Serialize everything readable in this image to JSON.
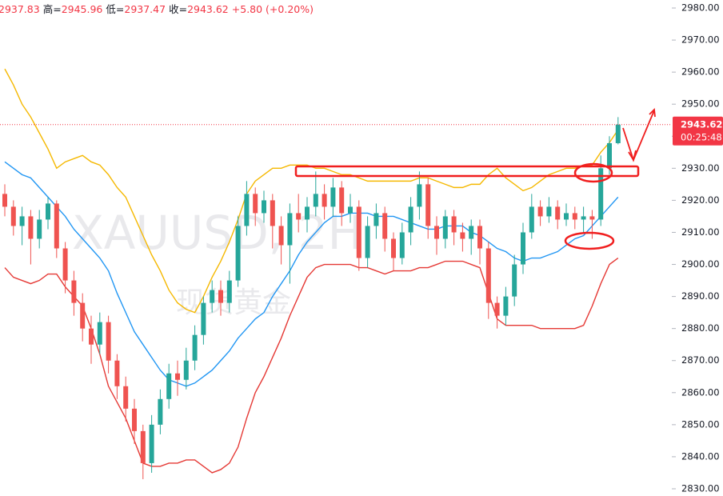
{
  "chart_data": {
    "type": "candlestick",
    "header": [
      "2937.83",
      "高=",
      "2945.96",
      "低=",
      "2937.47",
      "收=",
      "2943.62",
      "+5.80 (+0.20%)"
    ],
    "watermark": [
      "XAUUSD, 2H",
      "现货黄金"
    ],
    "price_label": "2943.62",
    "countdown": "00:25:48",
    "up_color": "#26a69a",
    "down_color": "#ef5350",
    "open": [
      2922,
      2918,
      2912,
      2915,
      2908,
      2914,
      2919,
      2905,
      2895,
      2888,
      2880,
      2875,
      2882,
      2870,
      2862,
      2855,
      2848,
      2838,
      2850,
      2858,
      2866,
      2864,
      2870,
      2878,
      2888,
      2892,
      2888,
      2895,
      2912,
      2922,
      2916,
      2920,
      2912,
      2906,
      2916,
      2914,
      2918,
      2922,
      2918,
      2924,
      2916,
      2918,
      2902,
      2912,
      2916,
      2908,
      2902,
      2910,
      2918,
      2925,
      2912,
      2908,
      2915,
      2910,
      2908,
      2912,
      2905,
      2888,
      2884,
      2890,
      2900,
      2910,
      2918,
      2915,
      2918,
      2914,
      2916,
      2914,
      2915,
      2914,
      2930,
      2937.83
    ],
    "high": [
      2925,
      2920,
      2918,
      2917,
      2917,
      2921,
      2920,
      2907,
      2898,
      2891,
      2884,
      2885,
      2884,
      2872,
      2865,
      2858,
      2850,
      2853,
      2861,
      2869,
      2870,
      2874,
      2881,
      2890,
      2895,
      2895,
      2898,
      2915,
      2926,
      2924,
      2923,
      2922,
      2915,
      2919,
      2922,
      2921,
      2929,
      2925,
      2927,
      2926,
      2922,
      2920,
      2915,
      2919,
      2918,
      2910,
      2913,
      2921,
      2929,
      2927,
      2915,
      2917,
      2917,
      2913,
      2914,
      2914,
      2907,
      2890,
      2893,
      2903,
      2913,
      2922,
      2920,
      2921,
      2920,
      2919,
      2918,
      2918,
      2917,
      2934,
      2940,
      2945.96
    ],
    "low": [
      2915,
      2909,
      2906,
      2900,
      2905,
      2911,
      2902,
      2891,
      2884,
      2876,
      2869,
      2872,
      2866,
      2858,
      2851,
      2844,
      2833,
      2835,
      2847,
      2855,
      2859,
      2861,
      2867,
      2875,
      2885,
      2884,
      2885,
      2893,
      2909,
      2912,
      2913,
      2905,
      2900,
      2894,
      2910,
      2910,
      2915,
      2914,
      2915,
      2912,
      2913,
      2898,
      2899,
      2908,
      2904,
      2898,
      2900,
      2906,
      2914,
      2908,
      2903,
      2905,
      2906,
      2904,
      2903,
      2900,
      2883,
      2880,
      2881,
      2887,
      2897,
      2908,
      2912,
      2913,
      2911,
      2912,
      2911,
      2910,
      2908,
      2912,
      2928,
      2937.47
    ],
    "close": [
      2918,
      2912,
      2915,
      2908,
      2914,
      2919,
      2905,
      2895,
      2888,
      2880,
      2875,
      2882,
      2870,
      2862,
      2855,
      2848,
      2838,
      2850,
      2858,
      2866,
      2864,
      2870,
      2878,
      2888,
      2892,
      2888,
      2895,
      2912,
      2922,
      2916,
      2920,
      2912,
      2906,
      2916,
      2914,
      2918,
      2922,
      2918,
      2924,
      2916,
      2918,
      2902,
      2912,
      2916,
      2908,
      2902,
      2910,
      2918,
      2925,
      2912,
      2908,
      2915,
      2910,
      2908,
      2912,
      2905,
      2888,
      2884,
      2890,
      2900,
      2910,
      2918,
      2915,
      2918,
      2914,
      2916,
      2914,
      2915,
      2914,
      2930,
      2937.83,
      2943.62
    ],
    "series": [
      {
        "color": "#f5b800",
        "values": [
          2961,
          2956,
          2950,
          2946,
          2941,
          2936,
          2930,
          2932,
          2933,
          2934,
          2932,
          2931,
          2928,
          2924,
          2921,
          2915,
          2909,
          2903,
          2898,
          2892,
          2888,
          2886,
          2885,
          2890,
          2896,
          2901,
          2907,
          2914,
          2922,
          2926,
          2928,
          2930,
          2930,
          2931,
          2931,
          2931,
          2930,
          2930,
          2929,
          2928,
          2928,
          2927,
          2926,
          2926,
          2926,
          2926,
          2926,
          2926,
          2927,
          2927,
          2926,
          2925,
          2924,
          2924,
          2925,
          2925,
          2928,
          2930,
          2927,
          2925,
          2923,
          2924,
          2926,
          2928,
          2929,
          2930,
          2930,
          2931,
          2931,
          2935,
          2938,
          2942
        ]
      },
      {
        "color": "#2196f3",
        "values": [
          2932,
          2930,
          2928,
          2927,
          2924,
          2921,
          2918,
          2915,
          2911,
          2908,
          2905,
          2902,
          2898,
          2891,
          2885,
          2879,
          2875,
          2871,
          2867,
          2864,
          2863,
          2862,
          2863,
          2865,
          2867,
          2870,
          2873,
          2877,
          2880,
          2883,
          2885,
          2890,
          2894,
          2898,
          2903,
          2907,
          2910,
          2913,
          2915,
          2915,
          2916,
          2916,
          2916,
          2915,
          2915,
          2915,
          2914,
          2913,
          2912,
          2911,
          2911,
          2912,
          2912,
          2912,
          2910,
          2909,
          2907,
          2905,
          2904,
          2902,
          2901,
          2902,
          2902,
          2903,
          2904,
          2906,
          2908,
          2909,
          2912,
          2915,
          2918,
          2921
        ]
      },
      {
        "color": "#e53935",
        "values": [
          2899,
          2896,
          2895,
          2894,
          2895,
          2897,
          2897,
          2893,
          2890,
          2887,
          2880,
          2872,
          2862,
          2857,
          2852,
          2845,
          2838,
          2837,
          2837,
          2838,
          2838,
          2839,
          2839,
          2837,
          2835,
          2836,
          2838,
          2843,
          2852,
          2860,
          2865,
          2871,
          2877,
          2884,
          2890,
          2896,
          2899,
          2900,
          2900,
          2900,
          2900,
          2899,
          2899,
          2898,
          2897,
          2898,
          2898,
          2898,
          2899,
          2899,
          2900,
          2901,
          2901,
          2901,
          2900,
          2899,
          2891,
          2883,
          2881,
          2881,
          2881,
          2881,
          2880,
          2880,
          2880,
          2880,
          2880,
          2881,
          2887,
          2894,
          2900,
          2902
        ]
      }
    ],
    "ylim": [
      2827.75,
      2982.5
    ],
    "yticks": [
      {
        "value": 2830,
        "label": "2830.00"
      },
      {
        "value": 2840,
        "label": "2840.00"
      },
      {
        "value": 2850,
        "label": "2850.00"
      },
      {
        "value": 2860,
        "label": "2860.00"
      },
      {
        "value": 2870,
        "label": "2870.00"
      },
      {
        "value": 2880,
        "label": "2880.00"
      },
      {
        "value": 2890,
        "label": "2890.00"
      },
      {
        "value": 2900,
        "label": "2900.00"
      },
      {
        "value": 2910,
        "label": "2910.00"
      },
      {
        "value": 2920,
        "label": "2920.00"
      },
      {
        "value": 2930,
        "label": "2930.00"
      },
      {
        "value": 2940,
        "label": "2940.00"
      },
      {
        "value": 2950,
        "label": "2950.00"
      },
      {
        "value": 2960,
        "label": "2960.00"
      },
      {
        "value": 2970,
        "label": "2970.00"
      },
      {
        "value": 2980,
        "label": "2980.00"
      }
    ]
  }
}
